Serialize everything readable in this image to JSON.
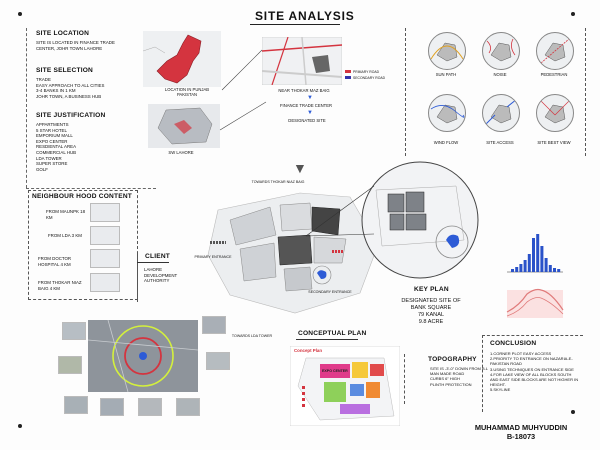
{
  "title": "SITE ANALYSIS",
  "site_location": {
    "heading": "SITE LOCATION",
    "text": "SITE IS LOCATED IN FINANCE TRADE CENTER, JOHR TOWN LAHORE"
  },
  "site_selection": {
    "heading": "SITE SELECTION",
    "items": [
      "TRADE",
      "EASY APPROACH TO ALL CITIES",
      "3-4 BANKS IN 1 KM",
      "JOHR TOWN, A BUSINESS HUB"
    ]
  },
  "site_justification": {
    "heading": "SITE JUSTIFICATION",
    "items": [
      "APPARTMENTS",
      "5 STAR HOTEL",
      "EMPORIUM MALL",
      "EXPO CENTER",
      "RESDIENTAL AREA",
      "COMMERCIAL HUB",
      "LDA TOWER",
      "SUPER STORE",
      "GOLF"
    ]
  },
  "neighbourhood": {
    "heading": "NEIGHBOUR HOOD CONTENT",
    "items": [
      "FROM MAUNPK 18 KM",
      "FROM LDA 3 KM",
      "FROM DOCTOR HOSPITAL 4 KM",
      "FROM THOKAR NIAZ BAIG 4 KM"
    ]
  },
  "location_maps": {
    "pakistan_caption": "LOCATION IN PUNJAB PAKISTAN",
    "lahore_caption": "SW LAHORE",
    "flow": [
      "NEAR THOKAR MAZ BAIG",
      "FINANCE TRADE CENTER",
      "DESIGNATED SITE"
    ],
    "legend": [
      "PRIMARY ROAD",
      "SECONDARY ROAD"
    ]
  },
  "analysis_circles": [
    "SUN PATH",
    "NOISE",
    "PEDESTRIAN",
    "WIND FLOW",
    "SITE ACCESS",
    "SITE BEST VIEW"
  ],
  "site_plan": {
    "top_label": "TOWARDS THOKAR NIAZ BAIG",
    "primary_entrance": "PRIMARY ENTRANCE",
    "secondary_entrance": "SECONDARY ENTRANCE",
    "bottom_label": "TOWARDS LDA TOWER"
  },
  "client": {
    "heading": "CLIENT",
    "text": "LAHORE DEVELOPMENT AUTHORITY"
  },
  "key_plan": {
    "heading": "KEY PLAN",
    "designated": "DESIGNATED SITE OF BANK SQUARE",
    "kanal": "79 KANAL",
    "acre": "9.8 ACRE"
  },
  "conceptual_plan": {
    "heading": "CONCEPTUAL PLAN",
    "map_title": "Concept Plan",
    "expo_label": "EXPO CENTER"
  },
  "topography": {
    "heading": "TOPOGRAPHY",
    "items": [
      "SITE IS -3'-0\" DOWN FROM B.L",
      "MAN MADE ROAD",
      "CURBS 6\" HIGH",
      "PLINTH PROTECTION"
    ]
  },
  "conclusion": {
    "heading": "CONCLUSION",
    "items": [
      "1.CORNER PLOT EASY ACCESS",
      "2.PRIORITY TO ENTRANCE ON NAZARIA-E-PAKISTAN ROAD",
      "3.USING TECHNIQUES ON ENTRANCE SIDE",
      "4.FOR LAKE VIEW OF ALL BLOCKS SOUTH AND EAST SIDE BLOCKS ARE NOT HIGHER IN HEIGHT.",
      "5.SKYLINE"
    ]
  },
  "author": {
    "name": "MUHAMMAD MUHYUDDIN",
    "id": "B-18073"
  },
  "colors": {
    "accent_red": "#d4343f",
    "lake_blue": "#2d5bd6",
    "chart_blue": "#2a52c9",
    "chart_red": "#e07b7b"
  }
}
